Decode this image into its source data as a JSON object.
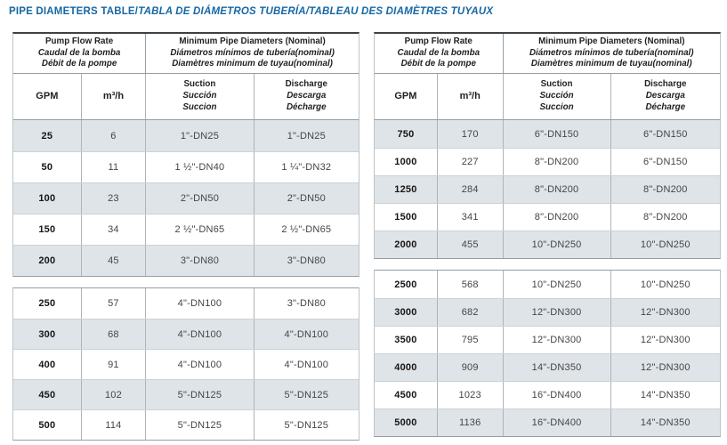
{
  "title": {
    "main": "PIPE DIAMETERS TABLE/",
    "italic": "TABLA DE DIÁMETROS TUBERÍA/TABLEAU DES DIAMÈTRES TUYAUX"
  },
  "header": {
    "flow_group": [
      "Pump Flow Rate",
      "Caudal de la bomba",
      "Débit de la pompe"
    ],
    "diameter_group": [
      "Minimum Pipe Diameters (Nominal)",
      "Diámetros mínimos de tubería(nominal)",
      "Diamètres minimum de tuyau(nominal)"
    ],
    "col_gpm": "GPM",
    "col_m3h": "m³/h",
    "col_suction": [
      "Suction",
      "Succión",
      "Succion"
    ],
    "col_discharge": [
      "Discharge",
      "Descarga",
      "Décharge"
    ]
  },
  "colors": {
    "accent_blue": "#1668a4",
    "row_shade": "#dfe4e8"
  },
  "tables": [
    {
      "position": "left",
      "sections": [
        {
          "rows": [
            {
              "gpm": "25",
              "m3h": "6",
              "suction": "1\"-DN25",
              "discharge": "1\"-DN25"
            },
            {
              "gpm": "50",
              "m3h": "11",
              "suction": "1 ½\"-DN40",
              "discharge": "1 ¼\"-DN32"
            },
            {
              "gpm": "100",
              "m3h": "23",
              "suction": "2\"-DN50",
              "discharge": "2\"-DN50"
            },
            {
              "gpm": "150",
              "m3h": "34",
              "suction": "2 ½\"-DN65",
              "discharge": "2 ½\"-DN65"
            },
            {
              "gpm": "200",
              "m3h": "45",
              "suction": "3\"-DN80",
              "discharge": "3\"-DN80"
            }
          ]
        },
        {
          "rows": [
            {
              "gpm": "250",
              "m3h": "57",
              "suction": "4\"-DN100",
              "discharge": "3\"-DN80"
            },
            {
              "gpm": "300",
              "m3h": "68",
              "suction": "4\"-DN100",
              "discharge": "4\"-DN100"
            },
            {
              "gpm": "400",
              "m3h": "91",
              "suction": "4\"-DN100",
              "discharge": "4\"-DN100"
            },
            {
              "gpm": "450",
              "m3h": "102",
              "suction": "5\"-DN125",
              "discharge": "5\"-DN125"
            },
            {
              "gpm": "500",
              "m3h": "114",
              "suction": "5\"-DN125",
              "discharge": "5\"-DN125"
            }
          ]
        }
      ]
    },
    {
      "position": "right",
      "sections": [
        {
          "rows": [
            {
              "gpm": "750",
              "m3h": "170",
              "suction": "6\"-DN150",
              "discharge": "6\"-DN150"
            },
            {
              "gpm": "1000",
              "m3h": "227",
              "suction": "8\"-DN200",
              "discharge": "6\"-DN150"
            },
            {
              "gpm": "1250",
              "m3h": "284",
              "suction": "8\"-DN200",
              "discharge": "8\"-DN200"
            },
            {
              "gpm": "1500",
              "m3h": "341",
              "suction": "8\"-DN200",
              "discharge": "8\"-DN200"
            },
            {
              "gpm": "2000",
              "m3h": "455",
              "suction": "10\"-DN250",
              "discharge": "10\"-DN250"
            }
          ]
        },
        {
          "rows": [
            {
              "gpm": "2500",
              "m3h": "568",
              "suction": "10\"-DN250",
              "discharge": "10\"-DN250"
            },
            {
              "gpm": "3000",
              "m3h": "682",
              "suction": "12\"-DN300",
              "discharge": "12\"-DN300"
            },
            {
              "gpm": "3500",
              "m3h": "795",
              "suction": "12\"-DN300",
              "discharge": "12\"-DN300"
            },
            {
              "gpm": "4000",
              "m3h": "909",
              "suction": "14\"-DN350",
              "discharge": "12\"-DN300"
            },
            {
              "gpm": "4500",
              "m3h": "1023",
              "suction": "16\"-DN400",
              "discharge": "14\"-DN350"
            },
            {
              "gpm": "5000",
              "m3h": "1136",
              "suction": "16\"-DN400",
              "discharge": "14\"-DN350"
            }
          ]
        }
      ]
    }
  ]
}
